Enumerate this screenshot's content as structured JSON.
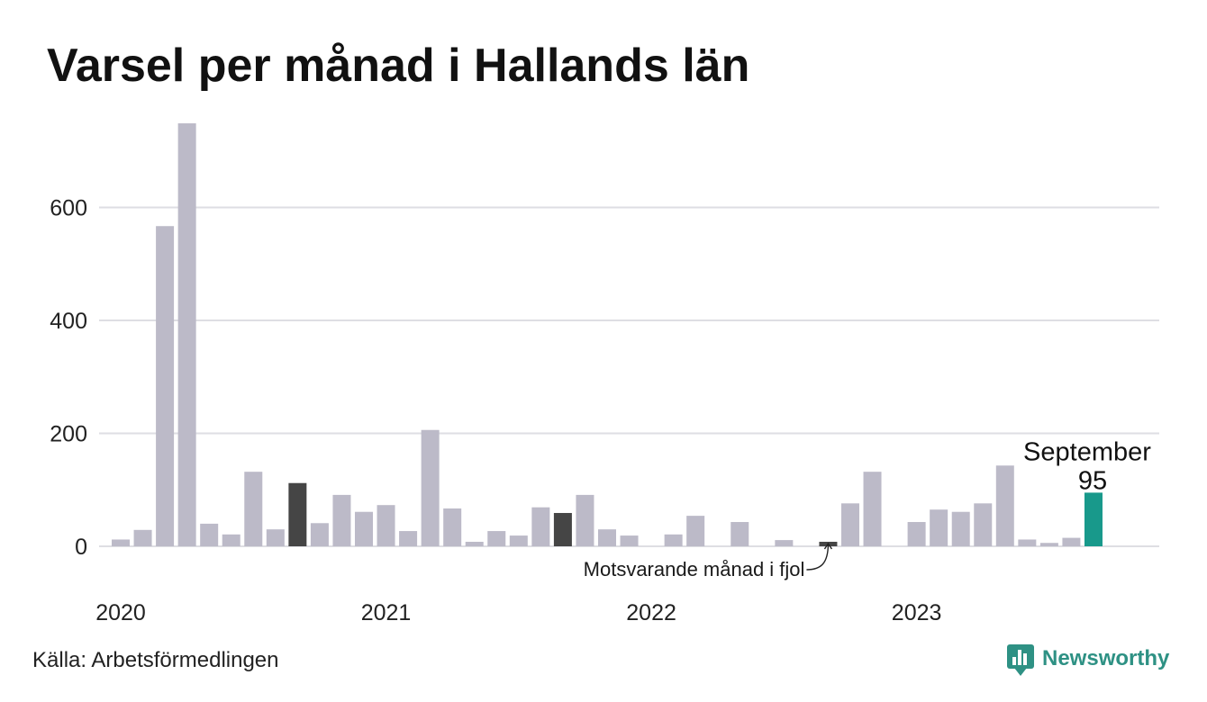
{
  "chart_data": {
    "type": "bar",
    "title": "Varsel per månad i Hallands län",
    "x": [
      "2020-01",
      "2020-02",
      "2020-03",
      "2020-04",
      "2020-05",
      "2020-06",
      "2020-07",
      "2020-08",
      "2020-09",
      "2020-10",
      "2020-11",
      "2020-12",
      "2021-01",
      "2021-02",
      "2021-03",
      "2021-04",
      "2021-05",
      "2021-06",
      "2021-07",
      "2021-08",
      "2021-09",
      "2021-10",
      "2021-11",
      "2021-12",
      "2022-01",
      "2022-02",
      "2022-03",
      "2022-04",
      "2022-05",
      "2022-06",
      "2022-07",
      "2022-08",
      "2022-09",
      "2022-10",
      "2022-11",
      "2022-12",
      "2023-01",
      "2023-02",
      "2023-03",
      "2023-04",
      "2023-05",
      "2023-06",
      "2023-07",
      "2023-08",
      "2023-09"
    ],
    "values": [
      12,
      29,
      567,
      749,
      40,
      21,
      132,
      30,
      112,
      41,
      91,
      61,
      73,
      27,
      206,
      67,
      8,
      27,
      19,
      69,
      59,
      91,
      30,
      19,
      0,
      21,
      54,
      0,
      43,
      0,
      11,
      0,
      8,
      76,
      132,
      0,
      43,
      65,
      61,
      76,
      143,
      12,
      6,
      15,
      95
    ],
    "x_tick_labels": [
      "2020",
      "2021",
      "2022",
      "2023"
    ],
    "y_ticks": [
      0,
      200,
      400,
      600
    ],
    "ylim": [
      0,
      750
    ],
    "grid": true,
    "highlight": {
      "latest": {
        "x": "2023-09",
        "label": "September",
        "color": "#18998b"
      },
      "same_month_previous_years": {
        "x": [
          "2020-09",
          "2021-09",
          "2022-09"
        ],
        "color": "#454545"
      }
    },
    "annotations": [
      {
        "text": "Motsvarande månad i fjol",
        "x": "2022-09"
      }
    ],
    "colors": {
      "bar": "#bcbac8",
      "grid": "#dedee3"
    }
  },
  "source": "Källa: Arbetsförmedlingen",
  "brand": {
    "name": "Newsworthy",
    "icon": "newsworthy-logo-icon",
    "color": "#2e9184"
  }
}
